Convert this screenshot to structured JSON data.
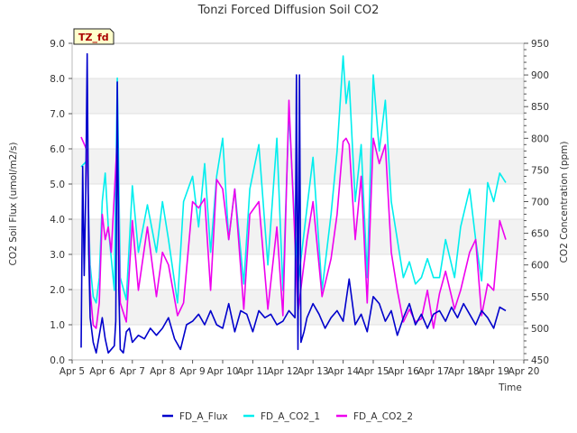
{
  "chart_data": {
    "type": "line",
    "title": "Tonzi Forced Diffusion Soil CO2",
    "badge": "TZ_fd",
    "xlabel": "Time",
    "ylabel_left": "CO2 Soil Flux (umol/m2/s)",
    "ylabel_right": "CO2 Concentration (ppm)",
    "x_range_days": [
      5,
      20
    ],
    "x_ticks": [
      {
        "day": 5,
        "label": "Apr 5"
      },
      {
        "day": 6,
        "label": "Apr 6"
      },
      {
        "day": 7,
        "label": "Apr 7"
      },
      {
        "day": 8,
        "label": "Apr 8"
      },
      {
        "day": 9,
        "label": "Apr 9"
      },
      {
        "day": 10,
        "label": "Apr 10"
      },
      {
        "day": 11,
        "label": "Apr 11"
      },
      {
        "day": 12,
        "label": "Apr 12"
      },
      {
        "day": 13,
        "label": "Apr 13"
      },
      {
        "day": 14,
        "label": "Apr 14"
      },
      {
        "day": 15,
        "label": "Apr 15"
      },
      {
        "day": 16,
        "label": "Apr 16"
      },
      {
        "day": 17,
        "label": "Apr 17"
      },
      {
        "day": 18,
        "label": "Apr 18"
      },
      {
        "day": 19,
        "label": "Apr 19"
      },
      {
        "day": 20,
        "label": "Apr 20"
      }
    ],
    "y_left": {
      "range": [
        0,
        9
      ],
      "ticks": [
        "0.0",
        "1.0",
        "2.0",
        "3.0",
        "4.0",
        "5.0",
        "6.0",
        "7.0",
        "8.0",
        "9.0"
      ]
    },
    "y_right": {
      "range": [
        450,
        950
      ],
      "ticks": [
        "450",
        "500",
        "550",
        "600",
        "650",
        "700",
        "750",
        "800",
        "850",
        "900",
        "950"
      ]
    },
    "series": [
      {
        "name": "FD_A_Flux",
        "axis": "left",
        "color": "#0000cc",
        "x": [
          5.3,
          5.35,
          5.4,
          5.45,
          5.5,
          5.55,
          5.6,
          5.7,
          5.8,
          5.9,
          6.0,
          6.1,
          6.2,
          6.3,
          6.4,
          6.45,
          6.5,
          6.55,
          6.6,
          6.7,
          6.8,
          6.9,
          7.0,
          7.2,
          7.4,
          7.6,
          7.8,
          8.0,
          8.2,
          8.4,
          8.6,
          8.8,
          9.0,
          9.2,
          9.4,
          9.6,
          9.8,
          10.0,
          10.2,
          10.4,
          10.6,
          10.8,
          11.0,
          11.2,
          11.4,
          11.6,
          11.8,
          12.0,
          12.2,
          12.4,
          12.45,
          12.5,
          12.55,
          12.6,
          12.7,
          12.8,
          13.0,
          13.2,
          13.4,
          13.6,
          13.8,
          14.0,
          14.2,
          14.4,
          14.6,
          14.8,
          15.0,
          15.2,
          15.4,
          15.6,
          15.8,
          16.0,
          16.2,
          16.4,
          16.6,
          16.8,
          17.0,
          17.2,
          17.4,
          17.6,
          17.8,
          18.0,
          18.2,
          18.4,
          18.6,
          18.8,
          19.0,
          19.2,
          19.4
        ],
        "values": [
          0.35,
          5.5,
          2.4,
          4.6,
          8.7,
          3.1,
          1.2,
          0.5,
          0.2,
          0.7,
          1.2,
          0.6,
          0.2,
          0.3,
          0.4,
          1.1,
          7.9,
          2.0,
          0.3,
          0.2,
          0.8,
          0.9,
          0.5,
          0.7,
          0.6,
          0.9,
          0.7,
          0.9,
          1.2,
          0.6,
          0.3,
          1.0,
          1.1,
          1.3,
          1.0,
          1.4,
          1.0,
          0.9,
          1.6,
          0.8,
          1.4,
          1.3,
          0.8,
          1.4,
          1.2,
          1.3,
          1.0,
          1.1,
          1.4,
          1.2,
          8.1,
          0.3,
          8.1,
          0.5,
          0.8,
          1.2,
          1.6,
          1.3,
          0.9,
          1.2,
          1.4,
          1.1,
          2.3,
          1.0,
          1.3,
          0.8,
          1.8,
          1.6,
          1.1,
          1.4,
          0.7,
          1.2,
          1.6,
          1.0,
          1.3,
          0.9,
          1.3,
          1.4,
          1.1,
          1.5,
          1.2,
          1.6,
          1.3,
          1.0,
          1.4,
          1.2,
          0.9,
          1.5,
          1.4
        ]
      },
      {
        "name": "FD_A_CO2_1",
        "axis": "right",
        "color": "#00eeee",
        "x": [
          5.3,
          5.5,
          5.6,
          5.7,
          5.8,
          5.9,
          6.0,
          6.1,
          6.2,
          6.4,
          6.5,
          6.6,
          6.8,
          7.0,
          7.2,
          7.5,
          7.8,
          8.0,
          8.2,
          8.5,
          8.7,
          9.0,
          9.2,
          9.4,
          9.6,
          9.8,
          10.0,
          10.2,
          10.4,
          10.7,
          10.9,
          11.2,
          11.5,
          11.8,
          12.0,
          12.2,
          12.5,
          12.8,
          13.0,
          13.3,
          13.6,
          13.8,
          14.0,
          14.1,
          14.2,
          14.4,
          14.6,
          14.8,
          15.0,
          15.2,
          15.4,
          15.6,
          15.8,
          16.0,
          16.2,
          16.4,
          16.6,
          16.8,
          17.0,
          17.2,
          17.4,
          17.7,
          17.9,
          18.2,
          18.4,
          18.6,
          18.8,
          19.0,
          19.2,
          19.4
        ],
        "values": [
          755,
          765,
          600,
          550,
          540,
          580,
          700,
          745,
          660,
          560,
          895,
          580,
          545,
          725,
          620,
          695,
          620,
          700,
          640,
          540,
          700,
          740,
          660,
          760,
          620,
          740,
          800,
          640,
          720,
          570,
          720,
          790,
          600,
          800,
          560,
          840,
          570,
          690,
          770,
          560,
          680,
          780,
          930,
          855,
          890,
          700,
          790,
          580,
          900,
          780,
          860,
          700,
          640,
          580,
          605,
          570,
          580,
          610,
          580,
          580,
          640,
          580,
          660,
          720,
          640,
          575,
          730,
          700,
          745,
          730
        ]
      },
      {
        "name": "FD_A_CO2_2",
        "axis": "right",
        "color": "#ee00ee",
        "x": [
          5.3,
          5.5,
          5.6,
          5.7,
          5.8,
          5.9,
          6.0,
          6.1,
          6.2,
          6.3,
          6.5,
          6.6,
          6.8,
          7.0,
          7.2,
          7.5,
          7.8,
          8.0,
          8.2,
          8.5,
          8.7,
          9.0,
          9.2,
          9.4,
          9.6,
          9.8,
          10.0,
          10.2,
          10.4,
          10.7,
          10.9,
          11.2,
          11.5,
          11.8,
          12.0,
          12.2,
          12.5,
          12.8,
          13.0,
          13.3,
          13.6,
          13.8,
          14.0,
          14.1,
          14.2,
          14.4,
          14.6,
          14.8,
          15.0,
          15.2,
          15.4,
          15.6,
          15.8,
          16.0,
          16.2,
          16.4,
          16.6,
          16.8,
          17.0,
          17.2,
          17.4,
          17.7,
          17.9,
          18.2,
          18.4,
          18.6,
          18.8,
          19.0,
          19.2,
          19.4
        ],
        "values": [
          802,
          780,
          560,
          505,
          500,
          540,
          680,
          640,
          660,
          620,
          800,
          540,
          510,
          670,
          560,
          660,
          550,
          620,
          600,
          520,
          540,
          700,
          690,
          705,
          560,
          735,
          720,
          640,
          720,
          530,
          680,
          700,
          530,
          660,
          520,
          860,
          525,
          640,
          700,
          550,
          610,
          680,
          795,
          800,
          790,
          640,
          740,
          540,
          800,
          760,
          790,
          620,
          560,
          510,
          530,
          510,
          515,
          560,
          500,
          555,
          590,
          530,
          560,
          620,
          640,
          520,
          570,
          560,
          670,
          640
        ]
      }
    ]
  }
}
